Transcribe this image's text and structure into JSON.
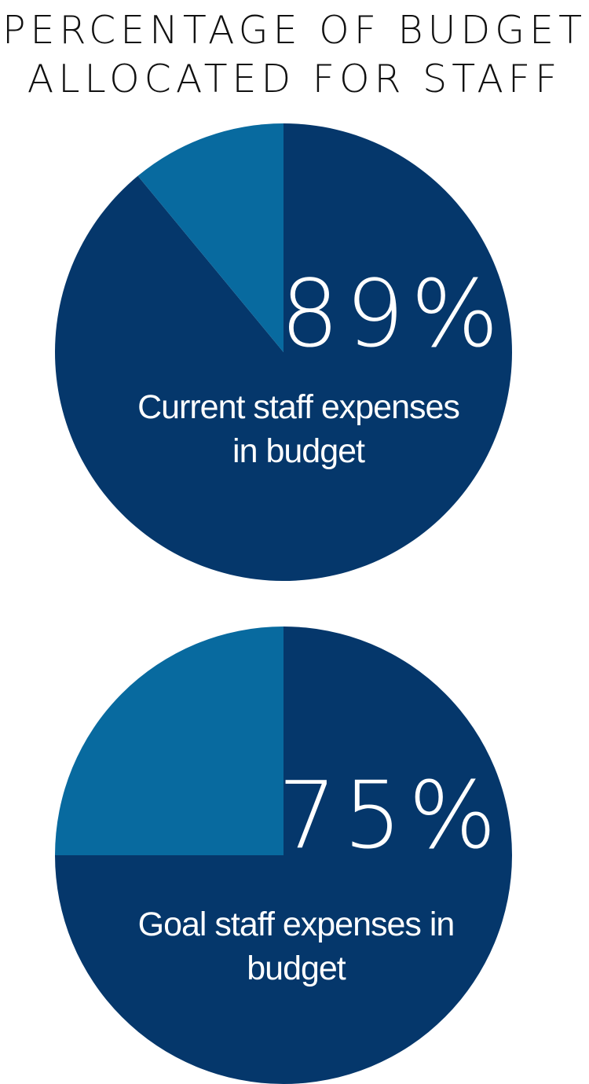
{
  "title": {
    "line1": "PERCENTAGE OF BUDGET",
    "line2": "ALLOCATED FOR STAFF"
  },
  "colors": {
    "main": "#05376b",
    "rest": "#086a9f"
  },
  "chart_data": [
    {
      "type": "pie",
      "title": "PERCENTAGE OF BUDGET ALLOCATED FOR STAFF",
      "slices": [
        {
          "label": "Current staff expenses in budget",
          "value": 89
        },
        {
          "label": "",
          "value": 11
        }
      ],
      "display_value": "89%",
      "caption_lines": [
        "Current staff expenses",
        "in budget"
      ],
      "legend": "none"
    },
    {
      "type": "pie",
      "title": "PERCENTAGE OF BUDGET ALLOCATED FOR STAFF",
      "slices": [
        {
          "label": "Goal staff expenses in budget",
          "value": 75
        },
        {
          "label": "",
          "value": 25
        }
      ],
      "display_value": "75%",
      "caption_lines": [
        "Goal staff expenses in",
        "budget"
      ],
      "legend": "none"
    }
  ]
}
